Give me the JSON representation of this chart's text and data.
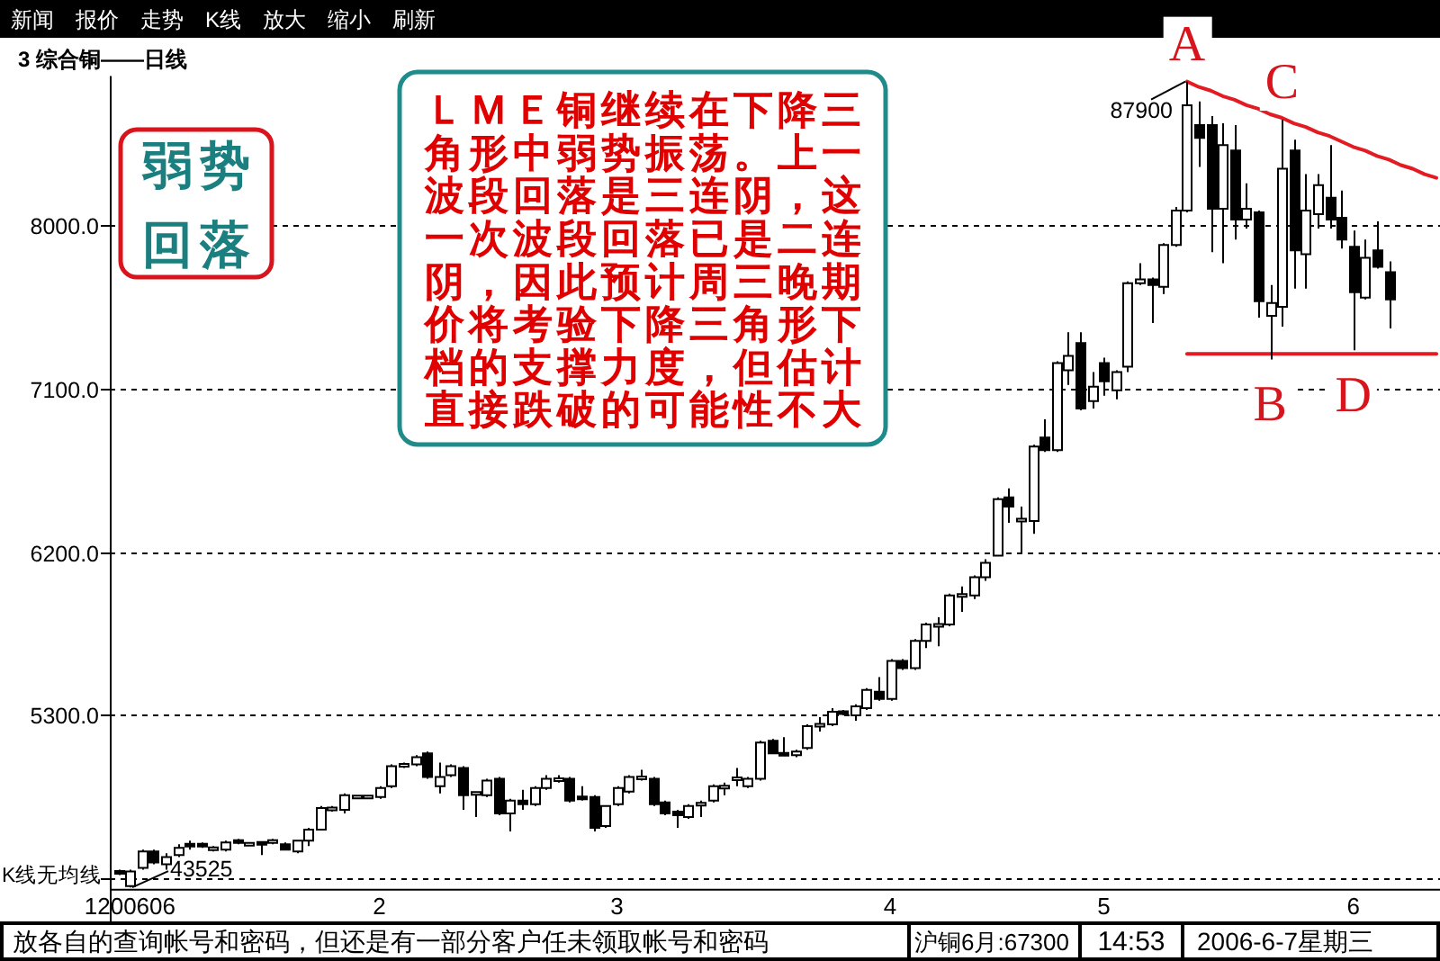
{
  "chart_data": {
    "type": "candlestick",
    "title": "3 综合铜——日线",
    "categories": [
      null,
      "1200606",
      null,
      null,
      null,
      null,
      null,
      null,
      null,
      null,
      null,
      null,
      null,
      null,
      null,
      null,
      null,
      null,
      null,
      null,
      null,
      null,
      "2",
      null,
      null,
      null,
      null,
      null,
      null,
      null,
      null,
      null,
      null,
      null,
      null,
      null,
      null,
      null,
      null,
      null,
      null,
      null,
      "3",
      null,
      null,
      null,
      null,
      null,
      null,
      null,
      null,
      null,
      null,
      null,
      null,
      null,
      null,
      null,
      null,
      null,
      null,
      null,
      null,
      null,
      null,
      "4",
      null,
      null,
      null,
      null,
      null,
      null,
      null,
      null,
      null,
      null,
      null,
      null,
      null,
      null,
      null,
      null,
      null,
      "5",
      null,
      null,
      null,
      null,
      null,
      null,
      null,
      null,
      null,
      null,
      null,
      null,
      null,
      null,
      null,
      null,
      null,
      null,
      null,
      null,
      "6",
      null,
      null,
      null,
      null,
      null,
      null,
      null
    ],
    "ohlc": [
      [
        4440,
        4450,
        4420,
        4430
      ],
      [
        4360,
        4450,
        4352.5,
        4440
      ],
      [
        4460,
        4560,
        4450,
        4550
      ],
      [
        4550,
        4560,
        4480,
        4490
      ],
      [
        4480,
        4540,
        4450,
        4520
      ],
      [
        4530,
        4590,
        4520,
        4570
      ],
      [
        4590,
        4610,
        4560,
        4580
      ],
      [
        4590,
        4600,
        4570,
        4580
      ],
      [
        4560,
        4580,
        4550,
        4570
      ],
      [
        4560,
        4610,
        4550,
        4600
      ],
      [
        4610,
        4620,
        4590,
        4600
      ],
      [
        4590,
        4600,
        4580,
        4590
      ],
      [
        4600,
        4600,
        4530,
        4590
      ],
      [
        4600,
        4620,
        4590,
        4610
      ],
      [
        4590,
        4600,
        4560,
        4560
      ],
      [
        4550,
        4610,
        4540,
        4610
      ],
      [
        4610,
        4680,
        4580,
        4670
      ],
      [
        4670,
        4800,
        4670,
        4790
      ],
      [
        4780,
        4800,
        4770,
        4790
      ],
      [
        4780,
        4870,
        4760,
        4860
      ],
      [
        4850,
        4860,
        4840,
        4850
      ],
      [
        4850,
        4860,
        4840,
        4850
      ],
      [
        4850,
        4910,
        4840,
        4900
      ],
      [
        4910,
        5030,
        4900,
        5020
      ],
      [
        5020,
        5040,
        5010,
        5030
      ],
      [
        5030,
        5080,
        5020,
        5070
      ],
      [
        5090,
        5100,
        4950,
        4960
      ],
      [
        4910,
        5040,
        4870,
        4960
      ],
      [
        4970,
        5030,
        4960,
        5020
      ],
      [
        5010,
        5020,
        4780,
        4860
      ],
      [
        4870,
        4880,
        4740,
        4870
      ],
      [
        4860,
        4950,
        4850,
        4940
      ],
      [
        4950,
        4960,
        4750,
        4760
      ],
      [
        4760,
        4840,
        4660,
        4830
      ],
      [
        4830,
        4890,
        4780,
        4810
      ],
      [
        4810,
        4910,
        4800,
        4900
      ],
      [
        4900,
        4970,
        4890,
        4950
      ],
      [
        4940,
        4970,
        4930,
        4950
      ],
      [
        4950,
        4960,
        4820,
        4830
      ],
      [
        4850,
        4910,
        4830,
        4840
      ],
      [
        4850,
        4860,
        4660,
        4680
      ],
      [
        4690,
        4800,
        4680,
        4800
      ],
      [
        4810,
        4910,
        4800,
        4900
      ],
      [
        4880,
        4970,
        4870,
        4960
      ],
      [
        4950,
        5000,
        4940,
        4960
      ],
      [
        4950,
        4960,
        4800,
        4810
      ],
      [
        4820,
        4830,
        4750,
        4760
      ],
      [
        4770,
        4780,
        4680,
        4750
      ],
      [
        4740,
        4810,
        4730,
        4800
      ],
      [
        4810,
        4830,
        4740,
        4810
      ],
      [
        4830,
        4920,
        4820,
        4910
      ],
      [
        4900,
        4930,
        4860,
        4910
      ],
      [
        4950,
        5010,
        4910,
        4950
      ],
      [
        4910,
        4960,
        4900,
        4950
      ],
      [
        4950,
        5160,
        4940,
        5150
      ],
      [
        5160,
        5170,
        5090,
        5090
      ],
      [
        5090,
        5180,
        5080,
        5080
      ],
      [
        5080,
        5110,
        5070,
        5100
      ],
      [
        5120,
        5250,
        5110,
        5240
      ],
      [
        5240,
        5290,
        5210,
        5250
      ],
      [
        5250,
        5340,
        5240,
        5320
      ],
      [
        5320,
        5330,
        5300,
        5310
      ],
      [
        5300,
        5360,
        5270,
        5350
      ],
      [
        5340,
        5450,
        5330,
        5440
      ],
      [
        5430,
        5510,
        5380,
        5390
      ],
      [
        5390,
        5610,
        5380,
        5600
      ],
      [
        5600,
        5610,
        5550,
        5560
      ],
      [
        5560,
        5720,
        5550,
        5710
      ],
      [
        5710,
        5810,
        5670,
        5800
      ],
      [
        5790,
        5840,
        5680,
        5800
      ],
      [
        5800,
        5970,
        5790,
        5960
      ],
      [
        5960,
        6010,
        5870,
        5960
      ],
      [
        5960,
        6070,
        5940,
        6060
      ],
      [
        6060,
        6160,
        6040,
        6140
      ],
      [
        6180,
        6500,
        6180,
        6490
      ],
      [
        6500,
        6550,
        6360,
        6450
      ],
      [
        6370,
        6450,
        6190,
        6380
      ],
      [
        6370,
        6790,
        6300,
        6780
      ],
      [
        6830,
        6930,
        6750,
        6760
      ],
      [
        6760,
        7250,
        6750,
        7240
      ],
      [
        7200,
        7410,
        7120,
        7280
      ],
      [
        7350,
        7410,
        6980,
        6990
      ],
      [
        7030,
        7190,
        6990,
        7110
      ],
      [
        7240,
        7270,
        7060,
        7140
      ],
      [
        7090,
        7200,
        7040,
        7190
      ],
      [
        7220,
        7690,
        7190,
        7680
      ],
      [
        7680,
        7790,
        7670,
        7700
      ],
      [
        7700,
        7710,
        7460,
        7670
      ],
      [
        7660,
        7900,
        7620,
        7890
      ],
      [
        7890,
        8100,
        7880,
        8080
      ],
      [
        8080,
        8790,
        8070,
        8660
      ],
      [
        8550,
        8680,
        8320,
        8480
      ],
      [
        8550,
        8600,
        7850,
        8090
      ],
      [
        8090,
        8560,
        7790,
        8440
      ],
      [
        8410,
        8550,
        7920,
        8030
      ],
      [
        8030,
        8230,
        7980,
        8090
      ],
      [
        8070,
        8080,
        7490,
        7580
      ],
      [
        7500,
        7670,
        7260,
        7570
      ],
      [
        7550,
        8580,
        7440,
        8310
      ],
      [
        8410,
        8470,
        7650,
        7860
      ],
      [
        7840,
        8280,
        7650,
        8080
      ],
      [
        8060,
        8280,
        7980,
        8220
      ],
      [
        8150,
        8440,
        7980,
        8030
      ],
      [
        8040,
        8190,
        7870,
        7920
      ],
      [
        7880,
        7970,
        7310,
        7630
      ],
      [
        7600,
        7920,
        7590,
        7820
      ],
      [
        7860,
        8020,
        7760,
        7770
      ],
      [
        7740,
        7800,
        7430,
        7590
      ],
      null,
      null,
      null,
      null
    ],
    "series": [
      {
        "type": "line",
        "color": "#e31b23",
        "values": [
          null,
          null,
          null,
          null,
          null,
          null,
          null,
          null,
          null,
          null,
          null,
          null,
          null,
          null,
          null,
          null,
          null,
          null,
          null,
          null,
          null,
          null,
          null,
          null,
          null,
          null,
          null,
          null,
          null,
          null,
          null,
          null,
          null,
          null,
          null,
          null,
          null,
          null,
          null,
          null,
          null,
          null,
          null,
          null,
          null,
          null,
          null,
          null,
          null,
          null,
          null,
          null,
          null,
          null,
          null,
          null,
          null,
          null,
          null,
          null,
          null,
          null,
          null,
          null,
          null,
          null,
          null,
          null,
          null,
          null,
          null,
          null,
          null,
          null,
          null,
          null,
          null,
          null,
          null,
          null,
          null,
          null,
          null,
          null,
          null,
          null,
          null,
          null,
          null,
          null,
          8790,
          8760,
          8740,
          8710,
          8690,
          8660,
          8640,
          8610,
          8590,
          8560,
          8540,
          8510,
          8490,
          8460,
          8430,
          8410,
          8380,
          8360,
          8330,
          8310,
          8280,
          8260
        ]
      },
      {
        "type": "line",
        "color": "#e31b23",
        "values": [
          null,
          null,
          null,
          null,
          null,
          null,
          null,
          null,
          null,
          null,
          null,
          null,
          null,
          null,
          null,
          null,
          null,
          null,
          null,
          null,
          null,
          null,
          null,
          null,
          null,
          null,
          null,
          null,
          null,
          null,
          null,
          null,
          null,
          null,
          null,
          null,
          null,
          null,
          null,
          null,
          null,
          null,
          null,
          null,
          null,
          null,
          null,
          null,
          null,
          null,
          null,
          null,
          null,
          null,
          null,
          null,
          null,
          null,
          null,
          null,
          null,
          null,
          null,
          null,
          null,
          null,
          null,
          null,
          null,
          null,
          null,
          null,
          null,
          null,
          null,
          null,
          null,
          null,
          null,
          null,
          null,
          null,
          null,
          null,
          null,
          null,
          null,
          null,
          null,
          null,
          7290,
          7290,
          7290,
          7290,
          7290,
          7290,
          7290,
          7290,
          7290,
          7290,
          7290,
          7290,
          7290,
          7290,
          7290,
          7290,
          7290,
          7290,
          7290,
          7290,
          7290,
          7290
        ]
      }
    ],
    "ylim": [
      4340,
      8820
    ],
    "yticks": [
      {
        "value": 4400,
        "label": null
      },
      {
        "value": 5300,
        "label": "5300.0"
      },
      {
        "value": 6200,
        "label": "6200.0"
      },
      {
        "value": 7100,
        "label": "7100.0"
      },
      {
        "value": 8000,
        "label": "8000.0"
      }
    ],
    "grid": "y",
    "annotations": [
      "新闻",
      "报价",
      "走势",
      "K线",
      "放大",
      "缩小",
      "刷新",
      "弱势回落",
      "ＬＭＥ铜继续在下降三角形中弱势振荡。上一波段回落是三连阴，这一次波段回落已是二连阴，因此预计周三晚期价将考验下降三角形下档的支撑力度，但估计直接跌破的可能性不大",
      "K线无均线",
      "87900",
      "43525",
      {
        "text": "A",
        "y": 8790
      },
      {
        "text": "B",
        "y": 7260
      },
      {
        "text": "C",
        "y": 8580
      },
      {
        "text": "D",
        "y": 7310
      },
      "放各自的查询帐号和密码，但还是有一部分客户任未领取帐号和密码",
      "沪铜6月:67300",
      "14:53",
      "2006-6-7星期三"
    ]
  }
}
